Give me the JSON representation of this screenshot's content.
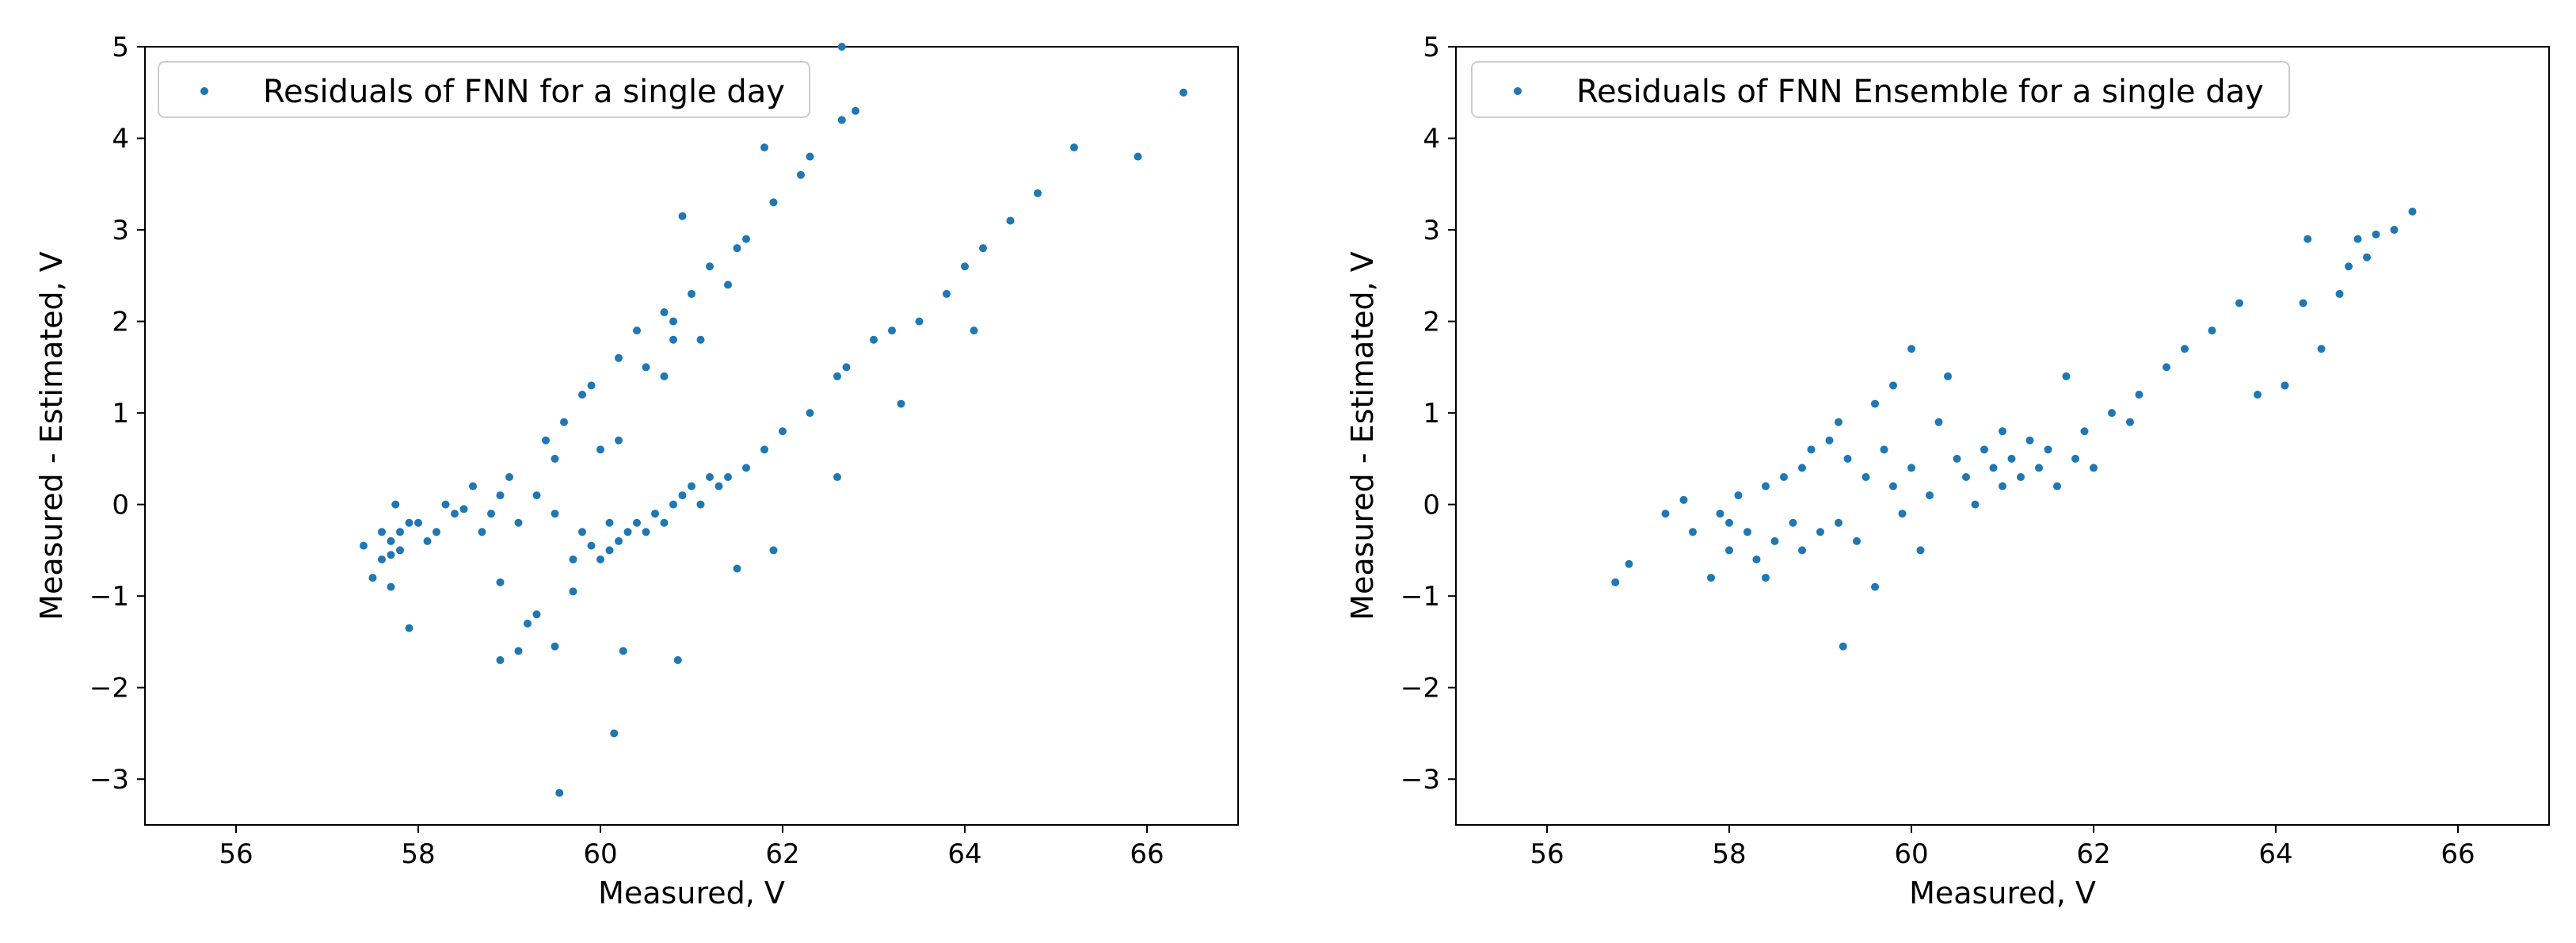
{
  "chart_data": [
    {
      "type": "scatter",
      "xlabel": "Measured, V",
      "ylabel": "Measured - Estimated, V",
      "xlim": [
        55,
        67
      ],
      "ylim": [
        -3.5,
        5
      ],
      "xticks": [
        "56",
        "58",
        "60",
        "62",
        "64",
        "66"
      ],
      "yticks": [
        "−3",
        "−2",
        "−1",
        "0",
        "1",
        "2",
        "3",
        "4",
        "5"
      ],
      "legend_position": "top-left",
      "color": "#1f77b4",
      "series": [
        {
          "name": "Residuals of FNN for a single day",
          "points": [
            [
              57.4,
              -0.45
            ],
            [
              57.5,
              -0.8
            ],
            [
              57.6,
              -0.3
            ],
            [
              57.6,
              -0.6
            ],
            [
              57.7,
              -0.4
            ],
            [
              57.7,
              -0.9
            ],
            [
              57.7,
              -0.55
            ],
            [
              57.8,
              -0.3
            ],
            [
              57.8,
              -0.5
            ],
            [
              57.75,
              0.0
            ],
            [
              57.9,
              -0.2
            ],
            [
              57.9,
              -1.35
            ],
            [
              58.0,
              -0.2
            ],
            [
              58.1,
              -0.4
            ],
            [
              58.2,
              -0.3
            ],
            [
              58.3,
              0.0
            ],
            [
              58.4,
              -0.1
            ],
            [
              58.5,
              -0.05
            ],
            [
              58.6,
              0.2
            ],
            [
              58.7,
              -0.3
            ],
            [
              58.8,
              -0.1
            ],
            [
              58.9,
              0.1
            ],
            [
              58.9,
              -0.85
            ],
            [
              58.9,
              -1.7
            ],
            [
              59.0,
              0.3
            ],
            [
              59.1,
              -0.2
            ],
            [
              59.1,
              -1.6
            ],
            [
              59.2,
              -1.3
            ],
            [
              59.3,
              0.1
            ],
            [
              59.3,
              -1.2
            ],
            [
              59.4,
              0.7
            ],
            [
              59.5,
              0.5
            ],
            [
              59.5,
              -0.1
            ],
            [
              59.5,
              -1.55
            ],
            [
              59.55,
              -3.15
            ],
            [
              59.6,
              0.9
            ],
            [
              59.7,
              -0.6
            ],
            [
              59.7,
              -0.95
            ],
            [
              59.8,
              1.2
            ],
            [
              59.8,
              -0.3
            ],
            [
              59.9,
              1.3
            ],
            [
              59.9,
              -0.45
            ],
            [
              60.0,
              0.6
            ],
            [
              60.0,
              -0.6
            ],
            [
              60.1,
              -0.2
            ],
            [
              60.1,
              -0.5
            ],
            [
              60.15,
              -2.5
            ],
            [
              60.2,
              1.6
            ],
            [
              60.2,
              0.7
            ],
            [
              60.2,
              -0.4
            ],
            [
              60.25,
              -1.6
            ],
            [
              60.3,
              -0.3
            ],
            [
              60.4,
              1.9
            ],
            [
              60.4,
              -0.2
            ],
            [
              60.5,
              1.5
            ],
            [
              60.5,
              -0.3
            ],
            [
              60.6,
              -0.1
            ],
            [
              60.7,
              2.1
            ],
            [
              60.7,
              1.4
            ],
            [
              60.7,
              -0.2
            ],
            [
              60.8,
              2.0
            ],
            [
              60.8,
              1.8
            ],
            [
              60.8,
              0.0
            ],
            [
              60.85,
              -1.7
            ],
            [
              60.9,
              3.15
            ],
            [
              60.9,
              0.1
            ],
            [
              61.0,
              2.3
            ],
            [
              61.0,
              0.2
            ],
            [
              61.1,
              1.8
            ],
            [
              61.1,
              0.0
            ],
            [
              61.2,
              2.6
            ],
            [
              61.2,
              0.3
            ],
            [
              61.3,
              0.2
            ],
            [
              61.4,
              2.4
            ],
            [
              61.4,
              0.3
            ],
            [
              61.5,
              2.8
            ],
            [
              61.5,
              -0.7
            ],
            [
              61.6,
              2.9
            ],
            [
              61.6,
              0.4
            ],
            [
              61.8,
              3.9
            ],
            [
              61.8,
              0.6
            ],
            [
              61.9,
              3.3
            ],
            [
              61.9,
              -0.5
            ],
            [
              62.0,
              0.8
            ],
            [
              62.2,
              3.6
            ],
            [
              62.3,
              3.8
            ],
            [
              62.3,
              1.0
            ],
            [
              62.6,
              1.4
            ],
            [
              62.6,
              0.3
            ],
            [
              62.65,
              4.2
            ],
            [
              62.7,
              1.5
            ],
            [
              62.8,
              4.3
            ],
            [
              63.0,
              1.8
            ],
            [
              63.2,
              1.9
            ],
            [
              63.3,
              1.1
            ],
            [
              63.5,
              2.0
            ],
            [
              63.8,
              2.3
            ],
            [
              64.0,
              2.6
            ],
            [
              64.1,
              1.9
            ],
            [
              64.2,
              2.8
            ],
            [
              64.5,
              3.1
            ],
            [
              64.8,
              3.4
            ],
            [
              65.2,
              3.9
            ],
            [
              65.9,
              3.8
            ],
            [
              66.4,
              4.5
            ],
            [
              62.65,
              5.0
            ]
          ]
        }
      ]
    },
    {
      "type": "scatter",
      "xlabel": "Measured, V",
      "ylabel": "Measured - Estimated, V",
      "xlim": [
        55,
        67
      ],
      "ylim": [
        -3.5,
        5
      ],
      "xticks": [
        "56",
        "58",
        "60",
        "62",
        "64",
        "66"
      ],
      "yticks": [
        "−3",
        "−2",
        "−1",
        "0",
        "1",
        "2",
        "3",
        "4",
        "5"
      ],
      "legend_position": "top-left",
      "color": "#1f77b4",
      "series": [
        {
          "name": "Residuals of FNN Ensemble for a single day",
          "points": [
            [
              56.75,
              -0.85
            ],
            [
              56.9,
              -0.65
            ],
            [
              57.3,
              -0.1
            ],
            [
              57.5,
              0.05
            ],
            [
              57.6,
              -0.3
            ],
            [
              57.8,
              -0.8
            ],
            [
              57.9,
              -0.1
            ],
            [
              58.0,
              -0.2
            ],
            [
              58.0,
              -0.5
            ],
            [
              58.1,
              0.1
            ],
            [
              58.2,
              -0.3
            ],
            [
              58.3,
              -0.6
            ],
            [
              58.4,
              0.2
            ],
            [
              58.4,
              -0.8
            ],
            [
              58.5,
              -0.4
            ],
            [
              58.6,
              0.3
            ],
            [
              58.7,
              -0.2
            ],
            [
              58.8,
              0.4
            ],
            [
              58.8,
              -0.5
            ],
            [
              58.9,
              0.6
            ],
            [
              59.0,
              -0.3
            ],
            [
              59.1,
              0.7
            ],
            [
              59.2,
              0.9
            ],
            [
              59.2,
              -0.2
            ],
            [
              59.25,
              -1.55
            ],
            [
              59.3,
              0.5
            ],
            [
              59.4,
              -0.4
            ],
            [
              59.5,
              0.3
            ],
            [
              59.6,
              1.1
            ],
            [
              59.6,
              -0.9
            ],
            [
              59.7,
              0.6
            ],
            [
              59.8,
              1.3
            ],
            [
              59.8,
              0.2
            ],
            [
              59.9,
              -0.1
            ],
            [
              60.0,
              1.7
            ],
            [
              60.0,
              0.4
            ],
            [
              60.1,
              -0.5
            ],
            [
              60.2,
              0.1
            ],
            [
              60.3,
              0.9
            ],
            [
              60.4,
              1.4
            ],
            [
              60.5,
              0.5
            ],
            [
              60.6,
              0.3
            ],
            [
              60.7,
              0.0
            ],
            [
              60.8,
              0.6
            ],
            [
              60.9,
              0.4
            ],
            [
              61.0,
              0.8
            ],
            [
              61.0,
              0.2
            ],
            [
              61.1,
              0.5
            ],
            [
              61.2,
              0.3
            ],
            [
              61.3,
              0.7
            ],
            [
              61.4,
              0.4
            ],
            [
              61.5,
              0.6
            ],
            [
              61.6,
              0.2
            ],
            [
              61.7,
              1.4
            ],
            [
              61.8,
              0.5
            ],
            [
              61.9,
              0.8
            ],
            [
              62.0,
              0.4
            ],
            [
              62.2,
              1.0
            ],
            [
              62.4,
              0.9
            ],
            [
              62.5,
              1.2
            ],
            [
              62.8,
              1.5
            ],
            [
              63.0,
              1.7
            ],
            [
              63.3,
              1.9
            ],
            [
              63.6,
              2.2
            ],
            [
              63.8,
              1.2
            ],
            [
              64.1,
              1.3
            ],
            [
              64.3,
              2.2
            ],
            [
              64.35,
              2.9
            ],
            [
              64.5,
              1.7
            ],
            [
              64.7,
              2.3
            ],
            [
              64.8,
              2.6
            ],
            [
              64.9,
              2.9
            ],
            [
              65.0,
              2.7
            ],
            [
              65.1,
              2.95
            ],
            [
              65.3,
              3.0
            ],
            [
              65.5,
              3.2
            ]
          ]
        }
      ]
    }
  ]
}
